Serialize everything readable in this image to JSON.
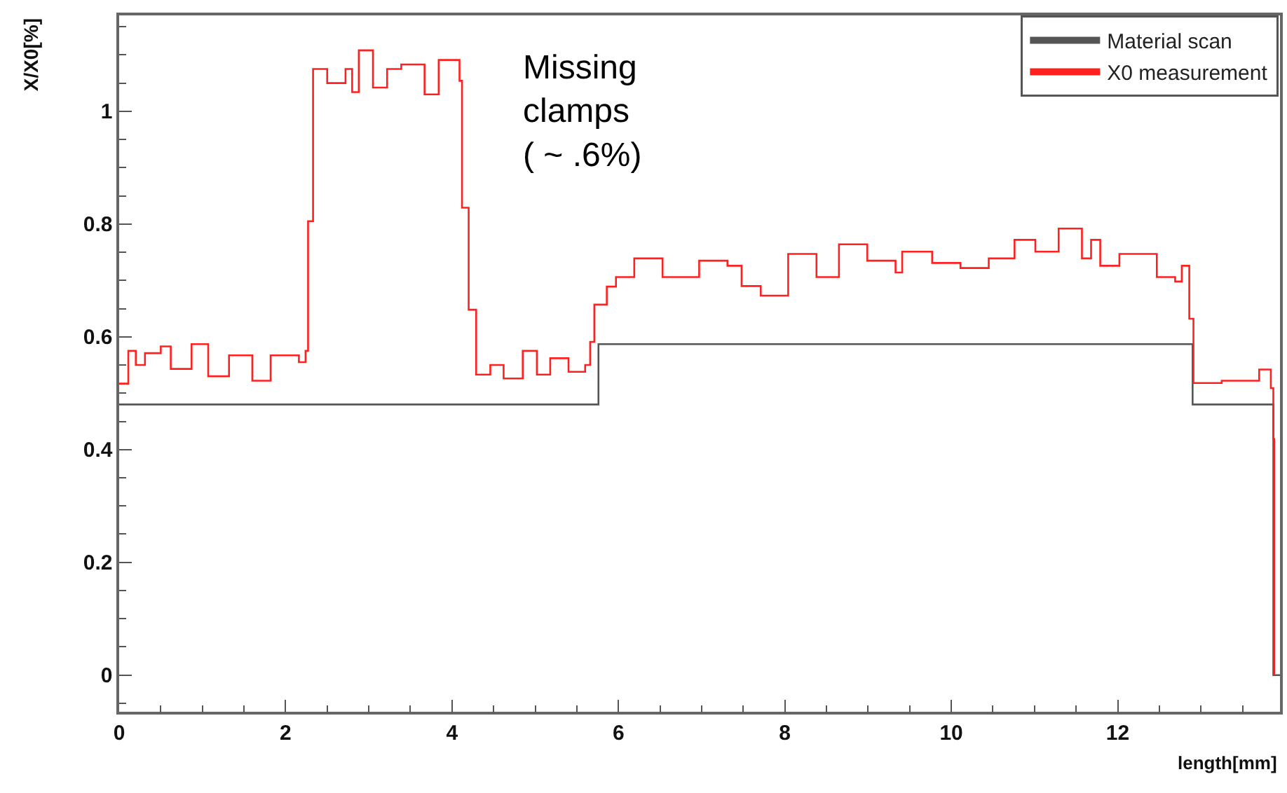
{
  "chart_data": {
    "type": "step",
    "xlabel": "length[mm]",
    "ylabel": "X/X0[%]",
    "xlim": [
      0,
      13.95
    ],
    "ylim": [
      -0.065,
      1.17
    ],
    "xticks": [
      0,
      2,
      4,
      6,
      8,
      10,
      12
    ],
    "yticks": [
      0,
      0.2,
      0.4,
      0.6,
      0.8,
      1
    ],
    "legend": "top right",
    "line_style": "solid",
    "annotations": [
      "Missing\nclamps\n( ~ .6%)"
    ],
    "series": [
      {
        "name": "Material scan",
        "color": "#555555",
        "x": [
          0,
          5.76,
          12.9,
          13.87,
          13.95
        ],
        "values": [
          0.48,
          0.587,
          0.48,
          0,
          0
        ]
      },
      {
        "name": "X0 measurement",
        "color": "#ff2020",
        "x": [
          0,
          0.11,
          0.2,
          0.31,
          0.5,
          0.62,
          0.87,
          1.07,
          1.32,
          1.6,
          1.82,
          2.16,
          2.24,
          2.27,
          2.33,
          2.5,
          2.72,
          2.8,
          2.88,
          3.05,
          3.22,
          3.39,
          3.67,
          3.84,
          4.09,
          4.12,
          4.2,
          4.29,
          4.46,
          4.62,
          4.85,
          5.02,
          5.18,
          5.4,
          5.6,
          5.66,
          5.71,
          5.86,
          5.97,
          6.19,
          6.53,
          6.97,
          7.31,
          7.48,
          7.71,
          8.04,
          8.38,
          8.65,
          8.99,
          9.33,
          9.41,
          9.77,
          10.11,
          10.45,
          10.76,
          11.01,
          11.29,
          11.57,
          11.68,
          11.79,
          12.02,
          12.47,
          12.69,
          12.77,
          12.86,
          12.91,
          13.25,
          13.7,
          13.84,
          13.87,
          13.88
        ],
        "values": [
          0.517,
          0.575,
          0.55,
          0.571,
          0.583,
          0.543,
          0.587,
          0.53,
          0.567,
          0.522,
          0.567,
          0.555,
          0.575,
          0.805,
          1.075,
          1.05,
          1.075,
          1.034,
          1.108,
          1.042,
          1.075,
          1.083,
          1.03,
          1.091,
          1.054,
          0.829,
          0.648,
          0.533,
          0.55,
          0.526,
          0.575,
          0.533,
          0.562,
          0.538,
          0.55,
          0.591,
          0.657,
          0.689,
          0.706,
          0.739,
          0.706,
          0.735,
          0.726,
          0.69,
          0.673,
          0.747,
          0.706,
          0.764,
          0.735,
          0.714,
          0.751,
          0.731,
          0.722,
          0.739,
          0.772,
          0.751,
          0.792,
          0.739,
          0.772,
          0.726,
          0.747,
          0.706,
          0.698,
          0.726,
          0.632,
          0.518,
          0.522,
          0.542,
          0.509,
          0.419,
          0
        ]
      }
    ]
  }
}
